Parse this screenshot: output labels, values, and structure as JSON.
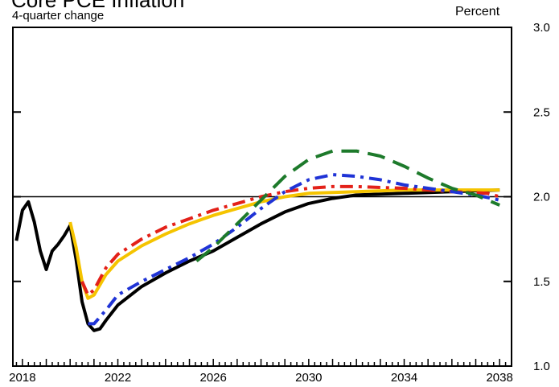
{
  "chart_data": {
    "type": "line",
    "title": "Core PCE Inflation",
    "subtitle": "4-quarter change",
    "unit_label": "Percent",
    "xlim": [
      2017.6,
      2038.5
    ],
    "ylim": [
      1.0,
      3.0
    ],
    "x_ticks": [
      2018,
      2022,
      2026,
      2030,
      2034,
      2038
    ],
    "x_tick_labels": [
      "2018",
      "2022",
      "2026",
      "2030",
      "2034",
      "2038"
    ],
    "y_ticks": [
      1.0,
      1.5,
      2.0,
      2.5,
      3.0
    ],
    "y_tick_labels": [
      "1.0",
      "1.5",
      "2.0",
      "2.5",
      "3.0"
    ],
    "reference_line": 2.0,
    "grid": false,
    "series": [
      {
        "color": "#000000",
        "style": "solid",
        "points": [
          [
            2017.75,
            1.74
          ],
          [
            2018.0,
            1.92
          ],
          [
            2018.25,
            1.97
          ],
          [
            2018.5,
            1.85
          ],
          [
            2018.75,
            1.68
          ],
          [
            2019.0,
            1.57
          ],
          [
            2019.25,
            1.68
          ],
          [
            2019.5,
            1.72
          ],
          [
            2019.75,
            1.77
          ],
          [
            2020.0,
            1.83
          ],
          [
            2020.25,
            1.63
          ],
          [
            2020.5,
            1.38
          ],
          [
            2020.75,
            1.25
          ],
          [
            2021.0,
            1.21
          ],
          [
            2021.25,
            1.22
          ],
          [
            2021.5,
            1.27
          ],
          [
            2022.0,
            1.36
          ],
          [
            2023.0,
            1.47
          ],
          [
            2024.0,
            1.55
          ],
          [
            2025.0,
            1.62
          ],
          [
            2026.0,
            1.68
          ],
          [
            2027.0,
            1.76
          ],
          [
            2028.0,
            1.84
          ],
          [
            2029.0,
            1.91
          ],
          [
            2030.0,
            1.96
          ],
          [
            2031.0,
            1.99
          ],
          [
            2032.0,
            2.01
          ],
          [
            2034.0,
            2.02
          ],
          [
            2036.0,
            2.03
          ],
          [
            2038.0,
            2.04
          ]
        ]
      },
      {
        "color": "#f5c400",
        "style": "solid",
        "points": [
          [
            2020.0,
            1.85
          ],
          [
            2020.25,
            1.7
          ],
          [
            2020.5,
            1.5
          ],
          [
            2020.75,
            1.4
          ],
          [
            2021.0,
            1.42
          ],
          [
            2021.5,
            1.54
          ],
          [
            2022.0,
            1.62
          ],
          [
            2023.0,
            1.71
          ],
          [
            2024.0,
            1.78
          ],
          [
            2025.0,
            1.84
          ],
          [
            2026.0,
            1.89
          ],
          [
            2027.0,
            1.93
          ],
          [
            2028.0,
            1.97
          ],
          [
            2029.0,
            2.0
          ],
          [
            2030.0,
            2.02
          ],
          [
            2032.0,
            2.03
          ],
          [
            2034.0,
            2.04
          ],
          [
            2036.0,
            2.04
          ],
          [
            2038.0,
            2.04
          ]
        ]
      },
      {
        "color": "#e32119",
        "style": "dashdot",
        "points": [
          [
            2020.5,
            1.5
          ],
          [
            2020.75,
            1.42
          ],
          [
            2021.0,
            1.45
          ],
          [
            2021.5,
            1.58
          ],
          [
            2022.0,
            1.66
          ],
          [
            2023.0,
            1.75
          ],
          [
            2024.0,
            1.82
          ],
          [
            2025.0,
            1.87
          ],
          [
            2026.0,
            1.92
          ],
          [
            2027.0,
            1.96
          ],
          [
            2028.0,
            2.0
          ],
          [
            2029.0,
            2.03
          ],
          [
            2030.0,
            2.05
          ],
          [
            2031.0,
            2.06
          ],
          [
            2032.0,
            2.06
          ],
          [
            2034.0,
            2.05
          ],
          [
            2036.0,
            2.03
          ],
          [
            2037.5,
            2.02
          ],
          [
            2038.0,
            2.0
          ]
        ]
      },
      {
        "color": "#1f33d6",
        "style": "dashdot",
        "points": [
          [
            2020.75,
            1.25
          ],
          [
            2021.0,
            1.25
          ],
          [
            2021.5,
            1.33
          ],
          [
            2022.0,
            1.42
          ],
          [
            2023.0,
            1.5
          ],
          [
            2024.0,
            1.57
          ],
          [
            2025.0,
            1.64
          ],
          [
            2026.0,
            1.72
          ],
          [
            2027.0,
            1.82
          ],
          [
            2028.0,
            1.93
          ],
          [
            2029.0,
            2.03
          ],
          [
            2030.0,
            2.1
          ],
          [
            2031.0,
            2.13
          ],
          [
            2032.0,
            2.12
          ],
          [
            2033.0,
            2.1
          ],
          [
            2034.0,
            2.07
          ],
          [
            2035.0,
            2.05
          ],
          [
            2036.0,
            2.03
          ],
          [
            2037.0,
            2.01
          ],
          [
            2038.0,
            1.98
          ]
        ]
      },
      {
        "color": "#1d7a2b",
        "style": "dashed",
        "points": [
          [
            2025.3,
            1.62
          ],
          [
            2026.0,
            1.7
          ],
          [
            2027.0,
            1.84
          ],
          [
            2028.0,
            1.98
          ],
          [
            2029.0,
            2.12
          ],
          [
            2030.0,
            2.22
          ],
          [
            2031.0,
            2.27
          ],
          [
            2032.0,
            2.27
          ],
          [
            2033.0,
            2.24
          ],
          [
            2034.0,
            2.18
          ],
          [
            2035.0,
            2.11
          ],
          [
            2036.0,
            2.05
          ],
          [
            2037.0,
            2.01
          ],
          [
            2038.0,
            1.95
          ]
        ]
      }
    ]
  }
}
